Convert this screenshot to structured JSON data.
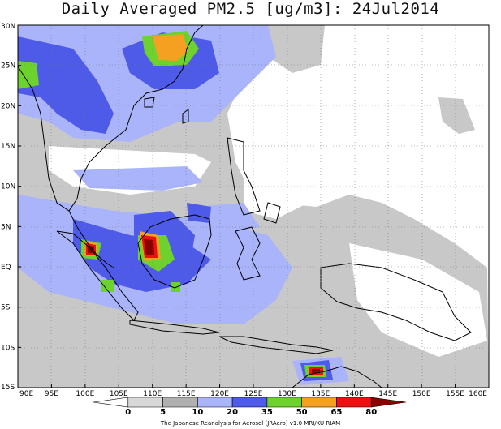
{
  "title": "Daily Averaged PM2.5 [ug/m3]: 24Jul2014",
  "map": {
    "lon_range": [
      90,
      160
    ],
    "lat_range": [
      -15,
      30
    ],
    "x_ticks": [
      "90E",
      "95E",
      "100E",
      "105E",
      "110E",
      "115E",
      "120E",
      "125E",
      "130E",
      "135E",
      "140E",
      "145E",
      "150E",
      "155E",
      "160E"
    ],
    "y_ticks": [
      "15S",
      "10S",
      "5S",
      "EQ",
      "5N",
      "10N",
      "15N",
      "20N",
      "25N",
      "30N"
    ],
    "grid": "dotted"
  },
  "legend": {
    "levels": [
      "0",
      "5",
      "10",
      "20",
      "35",
      "50",
      "65",
      "80"
    ],
    "colors": [
      "#ffffff",
      "#d8d8d8",
      "#b0b0b0",
      "#aab4fa",
      "#4e5ae8",
      "#6dd12e",
      "#f5a020",
      "#ee1010",
      "#8a0000"
    ]
  },
  "credit": "The Japanese Reanalysis for Aerosol (JRAero) v1.0 MRI/KU RIAM"
}
